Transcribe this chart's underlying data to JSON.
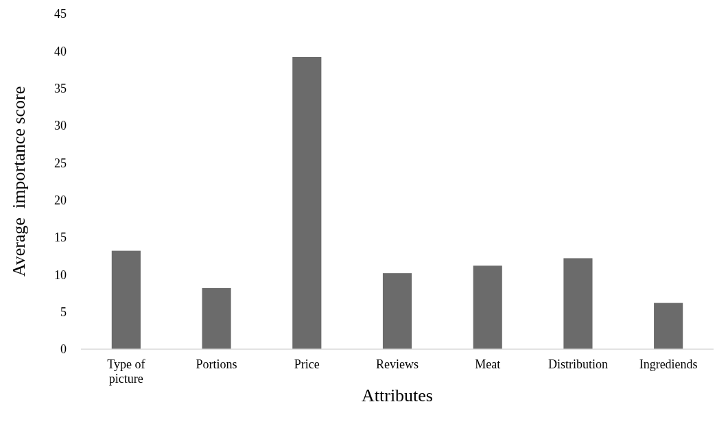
{
  "chart_data": {
    "type": "bar",
    "xlabel": "Attributes",
    "ylabel": "Average  importance score",
    "categories": [
      "Type of picture",
      "Portions",
      "Price",
      "Reviews",
      "Meat",
      "Distribution",
      "Ingrediends"
    ],
    "values": [
      13.2,
      8.2,
      39.2,
      10.2,
      11.2,
      12.2,
      6.2
    ],
    "color": "#6b6b6b",
    "ylim": [
      0,
      45
    ],
    "yticks": [
      0,
      5,
      10,
      15,
      20,
      25,
      30,
      35,
      40,
      45
    ],
    "grid": false
  }
}
